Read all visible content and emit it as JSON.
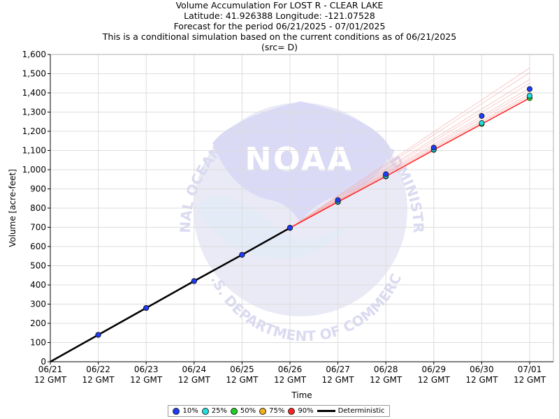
{
  "header": {
    "line1": "Volume Accumulation For LOST R - CLEAR LAKE",
    "line2": "Latitude: 41.926388 Longitude: -121.07528",
    "line3": "Forecast for the period 06/21/2025 - 07/01/2025",
    "line4": "This is a conditional simulation based on the current conditions as of 06/21/2025",
    "line5": "(src= D)"
  },
  "watermark": {
    "logo_text": "NOAA",
    "top_arc": "NATIONAL OCEANIC AND ATMOSPHERIC ADMINISTRATION",
    "bottom_arc": "U.S. DEPARTMENT OF COMMERCE"
  },
  "colors": {
    "p10": "#1e3cff",
    "p25": "#20e0e0",
    "p50": "#20d020",
    "p75": "#f0b020",
    "p90": "#ff2020",
    "deterministic": "#000000",
    "grid": "#dcdcdc"
  },
  "chart_data": {
    "type": "line",
    "xlabel": "Time",
    "ylabel": "Volume [acre-feet]",
    "ylim": [
      0,
      1600
    ],
    "y_ticks": [
      "0",
      "100",
      "200",
      "300",
      "400",
      "500",
      "600",
      "700",
      "800",
      "900",
      "1,000",
      "1,100",
      "1,200",
      "1,300",
      "1,400",
      "1,500",
      "1,600"
    ],
    "x_ticks": [
      {
        "date": "06/21",
        "time": "12 GMT"
      },
      {
        "date": "06/22",
        "time": "12 GMT"
      },
      {
        "date": "06/23",
        "time": "12 GMT"
      },
      {
        "date": "06/24",
        "time": "12 GMT"
      },
      {
        "date": "06/25",
        "time": "12 GMT"
      },
      {
        "date": "06/26",
        "time": "12 GMT"
      },
      {
        "date": "06/27",
        "time": "12 GMT"
      },
      {
        "date": "06/28",
        "time": "12 GMT"
      },
      {
        "date": "06/29",
        "time": "12 GMT"
      },
      {
        "date": "06/30",
        "time": "12 GMT"
      },
      {
        "date": "07/01",
        "time": "12 GMT"
      }
    ],
    "grid": true,
    "legend_position": "bottom-center",
    "series": [
      {
        "name": "10%",
        "values": [
          0,
          140,
          280,
          420,
          557,
          698,
          842,
          977,
          1115,
          1280,
          1420
        ]
      },
      {
        "name": "25%",
        "values": [
          0,
          140,
          280,
          420,
          557,
          697,
          834,
          968,
          1105,
          1243,
          1385
        ]
      },
      {
        "name": "50%",
        "values": [
          0,
          140,
          280,
          420,
          557,
          697,
          832,
          965,
          1103,
          1238,
          1373
        ]
      },
      {
        "name": "75%",
        "values": [
          0,
          140,
          280,
          420,
          557,
          697,
          832,
          965,
          1103,
          1238,
          1373
        ]
      },
      {
        "name": "90%",
        "values": [
          0,
          140,
          280,
          420,
          557,
          697,
          832,
          965,
          1103,
          1238,
          1373
        ]
      },
      {
        "name": "Deterministic",
        "values": [
          0,
          140,
          280,
          420,
          557,
          697
        ]
      }
    ],
    "ensemble_traces_end": [
      1530,
      1505,
      1470,
      1450,
      1425,
      1410,
      1395,
      1385
    ]
  },
  "legend": {
    "items": [
      "10%",
      "25%",
      "50%",
      "75%",
      "90%",
      "Deterministic"
    ]
  }
}
